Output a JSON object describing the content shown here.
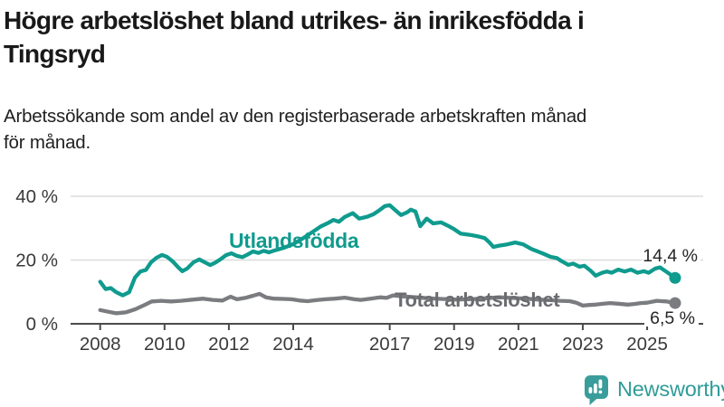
{
  "header": {
    "title_lines": [
      "Högre arbetslöshet bland utrikes- än inrikesfödda i",
      "Tingsryd"
    ],
    "subtitle_lines": [
      "Arbetssökande som andel av den registerbaserade arbetskraften månad",
      "för månad."
    ]
  },
  "chart_data": {
    "type": "line",
    "title": "Högre arbetslöshet bland utrikes- än inrikesfödda i Tingsryd",
    "subtitle": "Arbetssökande som andel av den registerbaserade arbetskraften månad för månad.",
    "xlabel": "",
    "ylabel": "",
    "grid": "horizontal",
    "x_axis": {
      "ticks": [
        2008,
        2010,
        2012,
        2014,
        2017,
        2019,
        2021,
        2023,
        2025
      ],
      "range": [
        2007.1,
        2026.7
      ]
    },
    "y_axis": {
      "ticks": [
        {
          "value": 0,
          "label": "0 %"
        },
        {
          "value": 20,
          "label": "20 %"
        },
        {
          "value": 40,
          "label": "40 %"
        }
      ],
      "range": [
        0,
        42
      ]
    },
    "colors": {
      "grid": "#dcdcdc",
      "axis": "#4b4b4b",
      "tick_text": "#3a3a3a"
    },
    "series": [
      {
        "name": "Utlandsfödda",
        "color": "#0f9b8e",
        "label_color": "#0f9b8e",
        "end_label": "14,4 %",
        "end_value": 14.4,
        "points": [
          [
            2008.0,
            13.2
          ],
          [
            2008.17,
            10.9
          ],
          [
            2008.33,
            11.2
          ],
          [
            2008.5,
            9.9
          ],
          [
            2008.7,
            8.9
          ],
          [
            2008.9,
            9.9
          ],
          [
            2009.08,
            14.5
          ],
          [
            2009.25,
            16.4
          ],
          [
            2009.42,
            16.9
          ],
          [
            2009.58,
            19.3
          ],
          [
            2009.75,
            20.7
          ],
          [
            2009.92,
            21.6
          ],
          [
            2010.08,
            21.0
          ],
          [
            2010.25,
            19.6
          ],
          [
            2010.42,
            17.8
          ],
          [
            2010.55,
            16.5
          ],
          [
            2010.7,
            17.3
          ],
          [
            2010.9,
            19.3
          ],
          [
            2011.08,
            20.2
          ],
          [
            2011.25,
            19.3
          ],
          [
            2011.42,
            18.4
          ],
          [
            2011.58,
            19.2
          ],
          [
            2011.75,
            20.3
          ],
          [
            2011.92,
            21.6
          ],
          [
            2012.08,
            22.1
          ],
          [
            2012.25,
            21.3
          ],
          [
            2012.42,
            20.9
          ],
          [
            2012.58,
            21.7
          ],
          [
            2012.75,
            22.7
          ],
          [
            2012.92,
            22.2
          ],
          [
            2013.08,
            22.9
          ],
          [
            2013.25,
            22.4
          ],
          [
            2013.42,
            23.0
          ],
          [
            2013.7,
            23.8
          ],
          [
            2014.0,
            25.0
          ],
          [
            2014.3,
            26.8
          ],
          [
            2014.6,
            28.8
          ],
          [
            2014.85,
            30.5
          ],
          [
            2015.08,
            31.6
          ],
          [
            2015.25,
            32.6
          ],
          [
            2015.42,
            32.0
          ],
          [
            2015.6,
            33.5
          ],
          [
            2015.85,
            34.7
          ],
          [
            2016.05,
            33.0
          ],
          [
            2016.3,
            33.6
          ],
          [
            2016.5,
            34.4
          ],
          [
            2016.65,
            35.4
          ],
          [
            2016.85,
            36.9
          ],
          [
            2017.0,
            37.2
          ],
          [
            2017.2,
            35.4
          ],
          [
            2017.35,
            34.1
          ],
          [
            2017.55,
            35.0
          ],
          [
            2017.65,
            35.8
          ],
          [
            2017.8,
            35.2
          ],
          [
            2017.95,
            30.6
          ],
          [
            2018.15,
            33.0
          ],
          [
            2018.35,
            31.5
          ],
          [
            2018.6,
            31.8
          ],
          [
            2018.8,
            30.8
          ],
          [
            2019.0,
            29.7
          ],
          [
            2019.2,
            28.3
          ],
          [
            2019.5,
            27.9
          ],
          [
            2019.75,
            27.4
          ],
          [
            2019.95,
            26.9
          ],
          [
            2020.1,
            25.5
          ],
          [
            2020.22,
            24.1
          ],
          [
            2020.4,
            24.5
          ],
          [
            2020.65,
            24.9
          ],
          [
            2020.9,
            25.5
          ],
          [
            2021.15,
            24.9
          ],
          [
            2021.4,
            23.5
          ],
          [
            2021.75,
            22.1
          ],
          [
            2022.0,
            21.0
          ],
          [
            2022.2,
            20.6
          ],
          [
            2022.35,
            19.6
          ],
          [
            2022.55,
            18.5
          ],
          [
            2022.7,
            18.9
          ],
          [
            2022.9,
            17.9
          ],
          [
            2023.05,
            18.2
          ],
          [
            2023.25,
            16.6
          ],
          [
            2023.4,
            15.1
          ],
          [
            2023.6,
            16.0
          ],
          [
            2023.75,
            16.4
          ],
          [
            2023.9,
            16.0
          ],
          [
            2024.1,
            17.0
          ],
          [
            2024.3,
            16.4
          ],
          [
            2024.5,
            17.0
          ],
          [
            2024.7,
            16.0
          ],
          [
            2024.9,
            16.5
          ],
          [
            2025.05,
            16.0
          ],
          [
            2025.25,
            17.3
          ],
          [
            2025.4,
            17.7
          ],
          [
            2025.6,
            16.3
          ],
          [
            2025.87,
            14.4
          ]
        ]
      },
      {
        "name": "Total arbetslöshet",
        "color": "#7b7c80",
        "label_color": "#6b6c70",
        "end_label": "6,5 %",
        "end_value": 6.5,
        "points": [
          [
            2008.0,
            4.3
          ],
          [
            2008.2,
            3.9
          ],
          [
            2008.5,
            3.3
          ],
          [
            2008.8,
            3.6
          ],
          [
            2009.1,
            4.6
          ],
          [
            2009.4,
            6.0
          ],
          [
            2009.6,
            7.0
          ],
          [
            2009.9,
            7.2
          ],
          [
            2010.2,
            7.0
          ],
          [
            2010.5,
            7.2
          ],
          [
            2010.9,
            7.6
          ],
          [
            2011.2,
            7.9
          ],
          [
            2011.5,
            7.5
          ],
          [
            2011.8,
            7.3
          ],
          [
            2012.05,
            8.5
          ],
          [
            2012.25,
            7.7
          ],
          [
            2012.5,
            8.1
          ],
          [
            2012.75,
            8.8
          ],
          [
            2012.95,
            9.4
          ],
          [
            2013.15,
            8.3
          ],
          [
            2013.4,
            7.9
          ],
          [
            2013.7,
            7.8
          ],
          [
            2013.95,
            7.7
          ],
          [
            2014.2,
            7.3
          ],
          [
            2014.45,
            7.1
          ],
          [
            2014.7,
            7.4
          ],
          [
            2015.0,
            7.7
          ],
          [
            2015.3,
            7.9
          ],
          [
            2015.6,
            8.2
          ],
          [
            2015.9,
            7.7
          ],
          [
            2016.1,
            7.5
          ],
          [
            2016.4,
            7.9
          ],
          [
            2016.7,
            8.3
          ],
          [
            2016.9,
            8.1
          ],
          [
            2017.1,
            8.9
          ],
          [
            2017.4,
            8.6
          ],
          [
            2017.8,
            8.3
          ],
          [
            2018.2,
            8.0
          ],
          [
            2018.6,
            7.8
          ],
          [
            2019.0,
            7.6
          ],
          [
            2019.5,
            7.7
          ],
          [
            2020.0,
            8.0
          ],
          [
            2020.4,
            8.3
          ],
          [
            2020.8,
            8.1
          ],
          [
            2021.2,
            7.9
          ],
          [
            2021.6,
            7.6
          ],
          [
            2022.0,
            7.4
          ],
          [
            2022.3,
            7.2
          ],
          [
            2022.6,
            7.1
          ],
          [
            2022.8,
            6.6
          ],
          [
            2023.0,
            5.7
          ],
          [
            2023.2,
            5.9
          ],
          [
            2023.4,
            6.0
          ],
          [
            2023.65,
            6.3
          ],
          [
            2023.85,
            6.5
          ],
          [
            2024.1,
            6.3
          ],
          [
            2024.4,
            6.0
          ],
          [
            2024.6,
            6.2
          ],
          [
            2024.8,
            6.5
          ],
          [
            2025.0,
            6.6
          ],
          [
            2025.3,
            7.2
          ],
          [
            2025.6,
            7.0
          ],
          [
            2025.87,
            6.5
          ]
        ]
      }
    ],
    "legend_position": "inline-labels"
  },
  "branding": {
    "logo_text": "Newsworthy",
    "logo_teal": "#3a9d9b",
    "text_teal": "#2f9c99"
  }
}
